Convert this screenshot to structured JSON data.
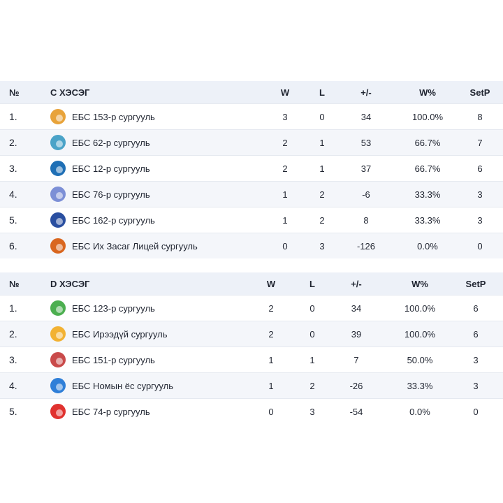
{
  "groups": [
    {
      "header": {
        "rank": "№",
        "group": "C ХЭСЭГ",
        "w": "W",
        "l": "L",
        "diff": "+/-",
        "pct": "W%",
        "setp": "SetP"
      },
      "rows": [
        {
          "rank": "1.",
          "team": "ЕБС 153-р сургууль",
          "w": "3",
          "l": "0",
          "diff": "34",
          "pct": "100.0%",
          "setp": "8",
          "logo_icon": "school-153-logo-icon",
          "logo_color": "#e8a33a"
        },
        {
          "rank": "2.",
          "team": "ЕБС 62-р сургууль",
          "w": "2",
          "l": "1",
          "diff": "53",
          "pct": "66.7%",
          "setp": "7",
          "logo_icon": "school-62-logo-icon",
          "logo_color": "#4aa3c8"
        },
        {
          "rank": "3.",
          "team": "ЕБС 12-р сургууль",
          "w": "2",
          "l": "1",
          "diff": "37",
          "pct": "66.7%",
          "setp": "6",
          "logo_icon": "school-12-logo-icon",
          "logo_color": "#1f6fb5"
        },
        {
          "rank": "4.",
          "team": "ЕБС 76-р сургууль",
          "w": "1",
          "l": "2",
          "diff": "-6",
          "pct": "33.3%",
          "setp": "3",
          "logo_icon": "school-76-logo-icon",
          "logo_color": "#7c8fd6"
        },
        {
          "rank": "5.",
          "team": "ЕБС 162-р сургууль",
          "w": "1",
          "l": "2",
          "diff": "8",
          "pct": "33.3%",
          "setp": "3",
          "logo_icon": "school-162-logo-icon",
          "logo_color": "#2a4fa0"
        },
        {
          "rank": "6.",
          "team": "ЕБС Их Засаг Лицей сургууль",
          "w": "0",
          "l": "3",
          "diff": "-126",
          "pct": "0.0%",
          "setp": "0",
          "logo_icon": "ikh-zasag-lyceum-logo-icon",
          "logo_color": "#d9661f"
        }
      ]
    },
    {
      "header": {
        "rank": "№",
        "group": "D ХЭСЭГ",
        "w": "W",
        "l": "L",
        "diff": "+/-",
        "pct": "W%",
        "setp": "SetP"
      },
      "rows": [
        {
          "rank": "1.",
          "team": "ЕБС 123-р сургууль",
          "w": "2",
          "l": "0",
          "diff": "34",
          "pct": "100.0%",
          "setp": "6",
          "logo_icon": "school-123-logo-icon",
          "logo_color": "#4caf50"
        },
        {
          "rank": "2.",
          "team": "ЕБС Ирээдүй сургууль",
          "w": "2",
          "l": "0",
          "diff": "39",
          "pct": "100.0%",
          "setp": "6",
          "logo_icon": "ireedui-school-logo-icon",
          "logo_color": "#f2b233"
        },
        {
          "rank": "3.",
          "team": "ЕБС 151-р сургууль",
          "w": "1",
          "l": "1",
          "diff": "7",
          "pct": "50.0%",
          "setp": "3",
          "logo_icon": "school-151-logo-icon",
          "logo_color": "#c94a4a"
        },
        {
          "rank": "4.",
          "team": "ЕБС Номын ёс сургууль",
          "w": "1",
          "l": "2",
          "diff": "-26",
          "pct": "33.3%",
          "setp": "3",
          "logo_icon": "nomyn-yos-school-logo-icon",
          "logo_color": "#2f7fd8"
        },
        {
          "rank": "5.",
          "team": "ЕБС 74-р сургууль",
          "w": "0",
          "l": "3",
          "diff": "-54",
          "pct": "0.0%",
          "setp": "0",
          "logo_icon": "school-74-logo-icon",
          "logo_color": "#e0322f"
        }
      ]
    }
  ]
}
